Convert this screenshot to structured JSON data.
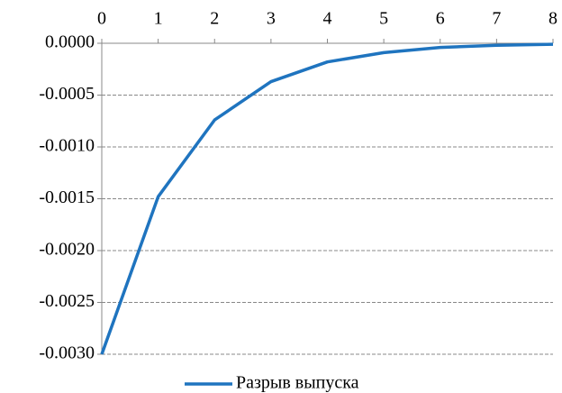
{
  "chart_data": {
    "type": "line",
    "x": [
      0,
      1,
      2,
      3,
      4,
      5,
      6,
      7,
      8
    ],
    "xlim": [
      0,
      8
    ],
    "xticks": [
      0,
      1,
      2,
      3,
      4,
      5,
      6,
      7,
      8
    ],
    "ylim": [
      -0.003,
      0
    ],
    "yticks": [
      {
        "value": 0,
        "label": "0.0000"
      },
      {
        "value": -0.0005,
        "label": "-0.0005"
      },
      {
        "value": -0.001,
        "label": "-0.0010"
      },
      {
        "value": -0.0015,
        "label": "-0.0015"
      },
      {
        "value": -0.002,
        "label": "-0.0020"
      },
      {
        "value": -0.0025,
        "label": "-0.0025"
      },
      {
        "value": -0.003,
        "label": "-0.0030"
      }
    ],
    "grid": true,
    "legend": "bottom",
    "series": [
      {
        "name": "Разрыв выпуска",
        "color": "#1f74bf",
        "values": [
          -0.003,
          -0.00148,
          -0.00074,
          -0.00037,
          -0.00018,
          -9e-05,
          -4e-05,
          -2e-05,
          -1e-05
        ]
      }
    ]
  }
}
